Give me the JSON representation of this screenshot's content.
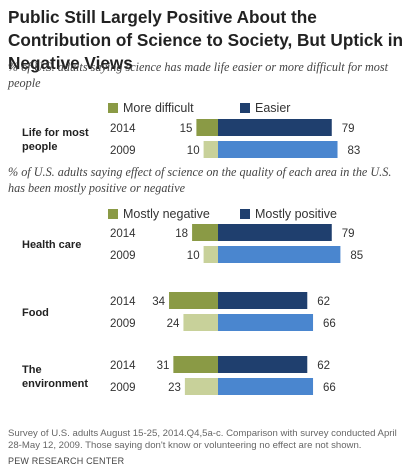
{
  "title": "Public Still Largely Positive About the Contribution of Science to Society, But Uptick in Negative Views",
  "note": "Survey of U.S. adults August 15-25, 2014.Q4,5a-c. Comparison with survey conducted April 28-May 12, 2009. Those saying don't know or volunteering no effect are not shown.",
  "source": "PEW RESEARCH CENTER",
  "colors": {
    "negative_2014": "#8a9a45",
    "negative_2009": "#c8d19a",
    "positive_2014": "#1f3f6e",
    "positive_2009": "#4a86cf"
  },
  "chart_data": [
    {
      "type": "bar",
      "subtitle": "% of U.S. adults saying science has made life easier or more difficult for most people",
      "legend": {
        "negative": "More difficult",
        "positive": "Easier"
      },
      "groups": [
        {
          "label": "Life for most people",
          "rows": [
            {
              "year": "2014",
              "negative": 15,
              "positive": 79
            },
            {
              "year": "2009",
              "negative": 10,
              "positive": 83
            }
          ]
        }
      ]
    },
    {
      "type": "bar",
      "subtitle": "% of U.S. adults saying effect of science on the quality of each area in the U.S. has been mostly positive or negative",
      "legend": {
        "negative": "Mostly negative",
        "positive": "Mostly positive"
      },
      "groups": [
        {
          "label": "Health care",
          "rows": [
            {
              "year": "2014",
              "negative": 18,
              "positive": 79
            },
            {
              "year": "2009",
              "negative": 10,
              "positive": 85
            }
          ]
        },
        {
          "label": "Food",
          "rows": [
            {
              "year": "2014",
              "negative": 34,
              "positive": 62
            },
            {
              "year": "2009",
              "negative": 24,
              "positive": 66
            }
          ]
        },
        {
          "label": "The environment",
          "rows": [
            {
              "year": "2014",
              "negative": 31,
              "positive": 62
            },
            {
              "year": "2009",
              "negative": 23,
              "positive": 66
            }
          ]
        }
      ]
    }
  ]
}
